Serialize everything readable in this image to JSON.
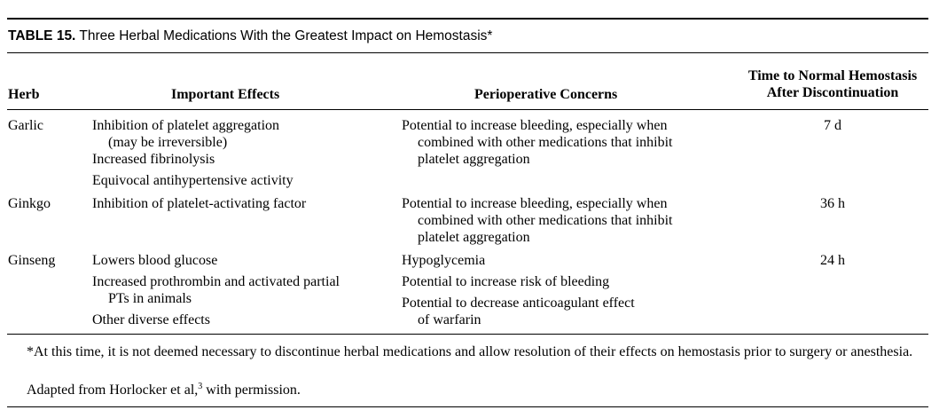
{
  "table": {
    "number": "TABLE 15.",
    "title": "Three Herbal Medications With the Greatest Impact on Hemostasis*",
    "headers": {
      "herb": "Herb",
      "effects": "Important Effects",
      "concerns": "Perioperative Concerns",
      "time_line1": "Time to Normal Hemostasis",
      "time_line2": "After Discontinuation"
    },
    "rows": [
      {
        "herb": "Garlic",
        "effects": [
          [
            "Inhibition of platelet aggregation",
            "(may be irreversible)"
          ],
          [
            "Increased fibrinolysis"
          ],
          [
            "Equivocal antihypertensive activity"
          ]
        ],
        "concerns": [
          [
            "Potential to increase bleeding, especially when",
            "combined with other medications that inhibit",
            "platelet aggregation"
          ]
        ],
        "time": "7 d"
      },
      {
        "herb": "Ginkgo",
        "effects": [
          [
            "Inhibition of platelet-activating factor"
          ]
        ],
        "concerns": [
          [
            "Potential to increase bleeding, especially when",
            "combined with other medications that inhibit",
            "platelet aggregation"
          ]
        ],
        "time": "36 h"
      },
      {
        "herb": "Ginseng",
        "effects": [
          [
            "Lowers blood glucose"
          ],
          [
            "Increased prothrombin and activated partial",
            "PTs in animals"
          ],
          [
            "Other diverse effects"
          ]
        ],
        "concerns": [
          [
            "Hypoglycemia"
          ],
          [
            "Potential to increase risk of bleeding"
          ],
          [
            "Potential to decrease anticoagulant effect",
            "of warfarin"
          ]
        ],
        "time": "24 h"
      }
    ],
    "footnote": "*At this time, it is not deemed necessary to discontinue herbal medications and allow resolution of their effects on hemostasis prior to surgery or anesthesia.",
    "source_text": "Adapted from Horlocker et al,",
    "source_ref": "3",
    "source_suffix": " with permission."
  }
}
